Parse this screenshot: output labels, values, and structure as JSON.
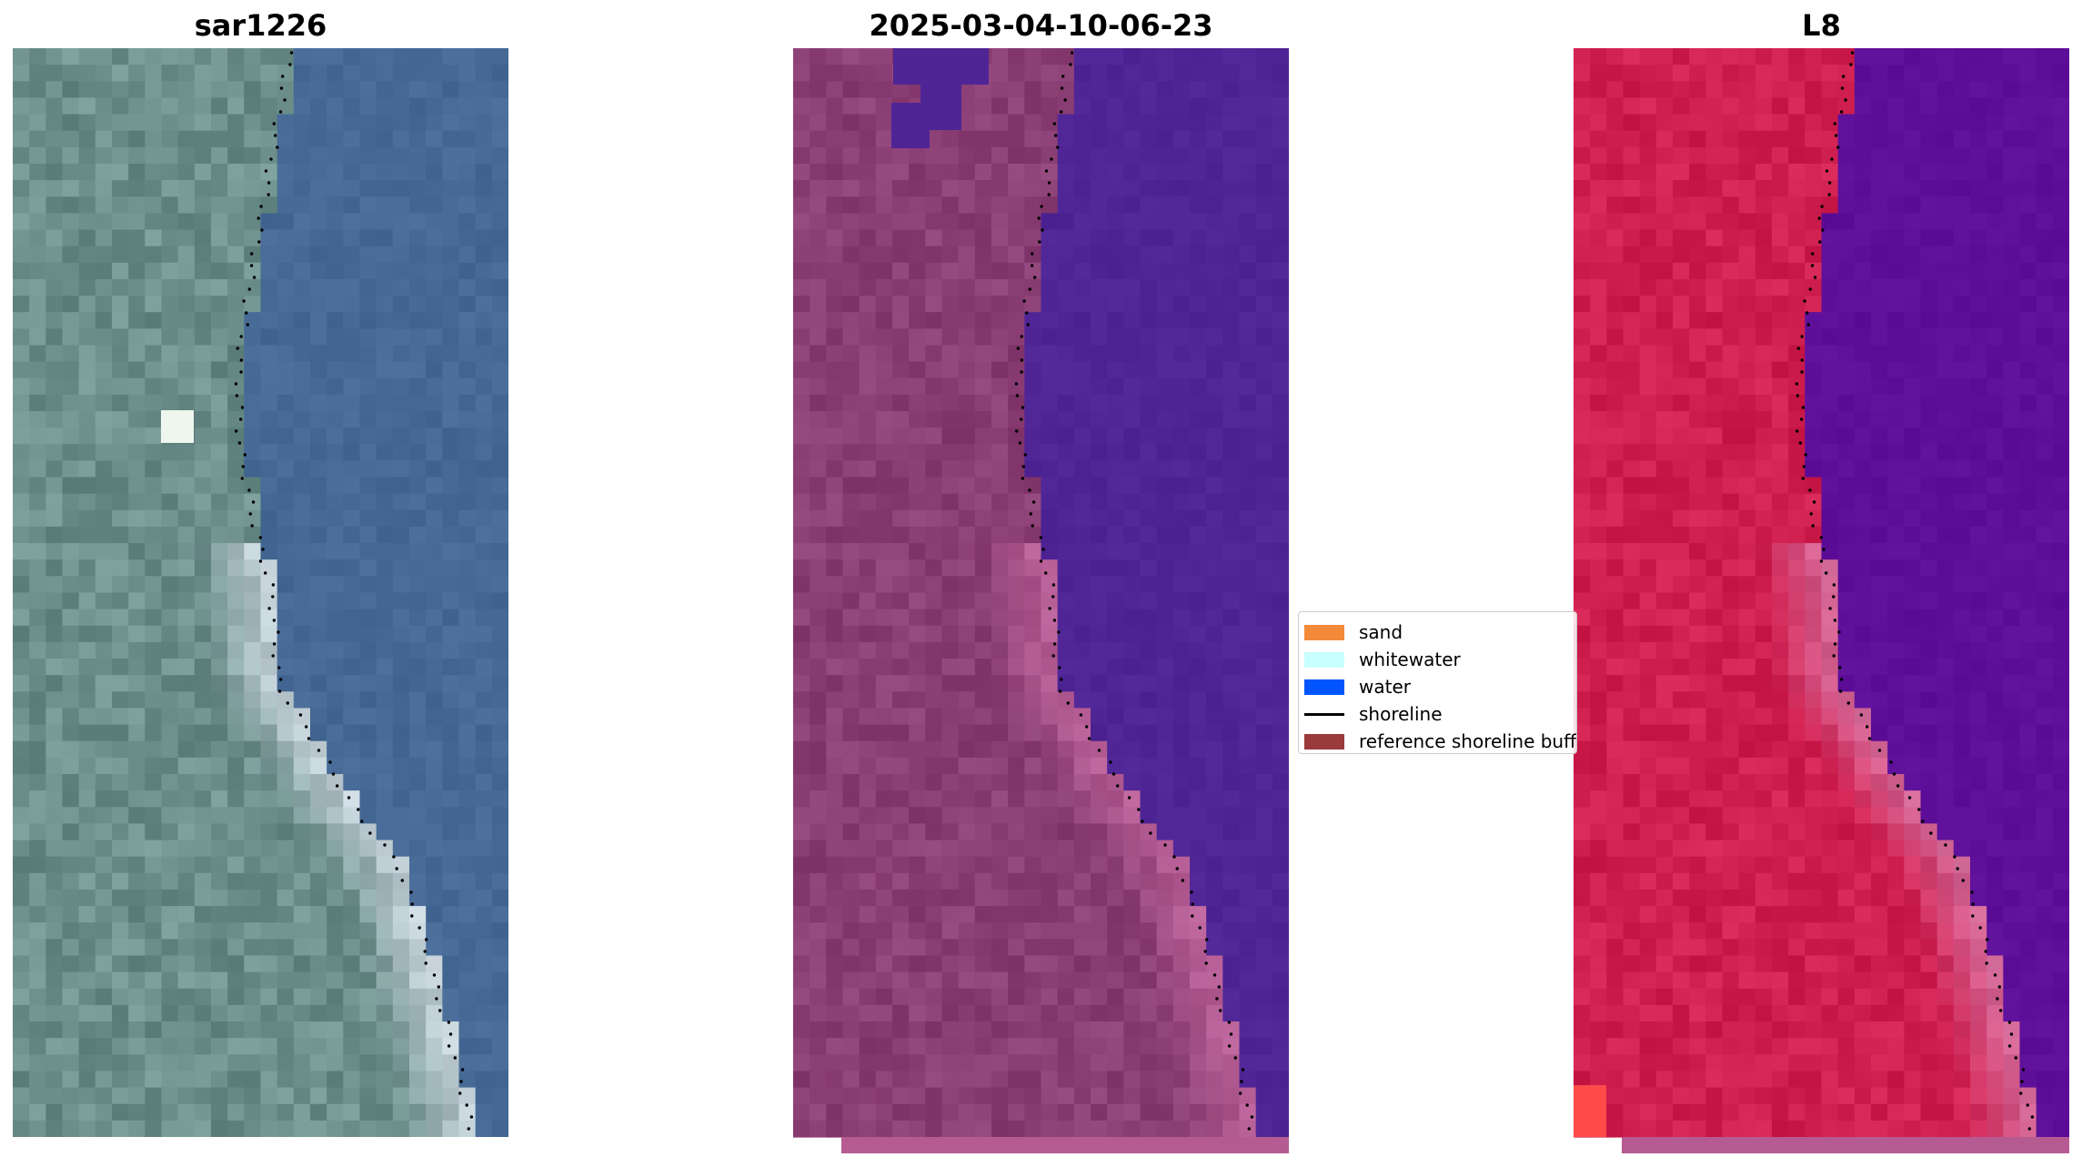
{
  "panels": [
    {
      "title": "sar1226",
      "kind": "rgb"
    },
    {
      "title": "2025-03-04-10-06-23",
      "kind": "classified"
    },
    {
      "title": "L8",
      "kind": "mndwi"
    }
  ],
  "legend": {
    "items": [
      {
        "label": "sand",
        "color": "#f28a3a",
        "type": "patch"
      },
      {
        "label": "whitewater",
        "color": "#c8ffff",
        "type": "patch"
      },
      {
        "label": "water",
        "color": "#0055ff",
        "type": "patch"
      },
      {
        "label": "shoreline",
        "color": "#000000",
        "type": "line"
      },
      {
        "label": "reference shoreline buffer",
        "color": "#9a3a3a",
        "type": "patch"
      }
    ]
  },
  "colors": {
    "land_rgb": "#6d8f8c",
    "sea_rgb": "#466a95",
    "land_classified": "#8a3e74",
    "sea_classified": "#4f2595",
    "land_mndwi": "#cf1f4f",
    "sea_mndwi": "#5e0f99",
    "buffer_strip": "#b65b92",
    "shoreline": "#000000"
  }
}
